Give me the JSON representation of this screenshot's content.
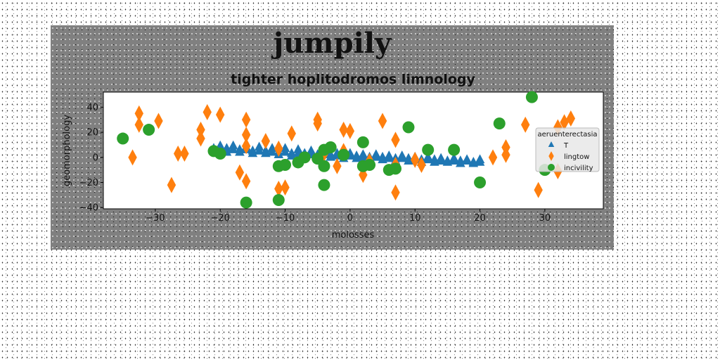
{
  "figure": {
    "suptitle": "jumpily",
    "title": "tighter hoplitodromos limnology"
  },
  "chart_data": {
    "type": "scatter",
    "xlabel": "molosses",
    "ylabel": "geomorphology",
    "xlim": [
      -38,
      39
    ],
    "ylim": [
      -41,
      52
    ],
    "xticks": [
      -30,
      -20,
      -10,
      0,
      10,
      20,
      30
    ],
    "yticks": [
      -40,
      -20,
      0,
      20,
      40
    ],
    "grid": false,
    "legend": {
      "title": "aeruenterectasia",
      "placement": "center-right"
    },
    "series": [
      {
        "name": "T",
        "marker": "triangle",
        "color": "#1f77b4",
        "points": [
          [
            -21,
            7
          ],
          [
            -20,
            7
          ],
          [
            -19,
            7
          ],
          [
            -18,
            6
          ],
          [
            -17,
            6
          ],
          [
            -16,
            6
          ],
          [
            -15,
            5
          ],
          [
            -14,
            5
          ],
          [
            -13,
            5
          ],
          [
            -12,
            4
          ],
          [
            -11,
            4
          ],
          [
            -10,
            4
          ],
          [
            -9,
            3
          ],
          [
            -8,
            3
          ],
          [
            -7,
            3
          ],
          [
            -6,
            2
          ],
          [
            -5,
            2
          ],
          [
            -4,
            2
          ],
          [
            -3,
            2
          ],
          [
            -2,
            1
          ],
          [
            -1,
            1
          ],
          [
            0,
            1
          ],
          [
            1,
            1
          ],
          [
            2,
            0
          ],
          [
            3,
            0
          ],
          [
            4,
            0
          ],
          [
            5,
            0
          ],
          [
            6,
            -1
          ],
          [
            7,
            -1
          ],
          [
            8,
            -1
          ],
          [
            9,
            -1
          ],
          [
            10,
            -2
          ],
          [
            11,
            -2
          ],
          [
            12,
            -2
          ],
          [
            13,
            -2
          ],
          [
            14,
            -3
          ],
          [
            15,
            -3
          ],
          [
            16,
            -3
          ],
          [
            17,
            -3
          ],
          [
            18,
            -3
          ],
          [
            19,
            -4
          ],
          [
            20,
            -4
          ],
          [
            -20,
            9
          ],
          [
            -18,
            9
          ],
          [
            -16,
            8
          ],
          [
            -14,
            8
          ],
          [
            -12,
            7
          ],
          [
            -10,
            7
          ],
          [
            -8,
            6
          ],
          [
            -6,
            5
          ],
          [
            -4,
            4
          ],
          [
            -2,
            3
          ],
          [
            0,
            3
          ],
          [
            2,
            2
          ],
          [
            4,
            2
          ],
          [
            6,
            1
          ],
          [
            8,
            1
          ],
          [
            10,
            0
          ],
          [
            12,
            0
          ],
          [
            14,
            -1
          ],
          [
            16,
            -1
          ],
          [
            18,
            -2
          ],
          [
            20,
            -2
          ],
          [
            -21,
            5
          ],
          [
            -19,
            4
          ],
          [
            -17,
            4
          ],
          [
            -15,
            3
          ],
          [
            -13,
            3
          ],
          [
            -11,
            2
          ],
          [
            -9,
            1
          ],
          [
            -7,
            1
          ],
          [
            -5,
            0
          ],
          [
            -3,
            0
          ],
          [
            -1,
            -1
          ],
          [
            1,
            -1
          ],
          [
            3,
            -2
          ],
          [
            5,
            -2
          ],
          [
            7,
            -3
          ],
          [
            9,
            -3
          ],
          [
            11,
            -4
          ],
          [
            13,
            -4
          ],
          [
            15,
            -4
          ],
          [
            17,
            -5
          ],
          [
            19,
            -5
          ]
        ]
      },
      {
        "name": "lingtow",
        "marker": "diamond",
        "color": "#ff7f0e",
        "points": [
          [
            -32.5,
            35
          ],
          [
            -32.5,
            26
          ],
          [
            -33.5,
            0
          ],
          [
            -29.5,
            29
          ],
          [
            -27.5,
            -22
          ],
          [
            -26.5,
            3
          ],
          [
            -25.5,
            3
          ],
          [
            -23,
            22
          ],
          [
            -23,
            15
          ],
          [
            -22,
            36
          ],
          [
            -20,
            34
          ],
          [
            -17,
            -12
          ],
          [
            -16,
            18
          ],
          [
            -16,
            9
          ],
          [
            -16,
            -19
          ],
          [
            -16,
            30
          ],
          [
            -13,
            13
          ],
          [
            -11,
            7
          ],
          [
            -11,
            -25
          ],
          [
            -10,
            -24
          ],
          [
            -9,
            19
          ],
          [
            -5,
            30
          ],
          [
            -5,
            27
          ],
          [
            -4,
            3
          ],
          [
            -2,
            -7
          ],
          [
            -1,
            22
          ],
          [
            -1,
            5
          ],
          [
            0,
            21
          ],
          [
            2,
            -14
          ],
          [
            3,
            -3
          ],
          [
            5,
            29
          ],
          [
            7,
            14
          ],
          [
            7,
            -28
          ],
          [
            7,
            -6
          ],
          [
            10,
            -2
          ],
          [
            11,
            -6
          ],
          [
            22,
            0
          ],
          [
            24,
            8
          ],
          [
            24,
            2
          ],
          [
            27,
            26
          ],
          [
            29,
            -26
          ],
          [
            32,
            24
          ],
          [
            32,
            -11
          ],
          [
            33,
            28
          ],
          [
            34,
            31
          ]
        ]
      },
      {
        "name": "incivility",
        "marker": "circle",
        "color": "#2ca02c",
        "points": [
          [
            -35,
            15
          ],
          [
            -31,
            22
          ],
          [
            -21,
            5
          ],
          [
            -20,
            3
          ],
          [
            -16,
            -36
          ],
          [
            -11,
            -34
          ],
          [
            -11,
            -7
          ],
          [
            -10,
            -6
          ],
          [
            -8,
            -4
          ],
          [
            -7,
            0
          ],
          [
            -5,
            -1
          ],
          [
            -4,
            6
          ],
          [
            -4,
            -7
          ],
          [
            -4,
            -22
          ],
          [
            -3,
            8
          ],
          [
            -1,
            2
          ],
          [
            2,
            -7
          ],
          [
            2,
            12
          ],
          [
            3,
            -6
          ],
          [
            6,
            -10
          ],
          [
            7,
            -9
          ],
          [
            9,
            24
          ],
          [
            12,
            6
          ],
          [
            16,
            6
          ],
          [
            20,
            -20
          ],
          [
            23,
            27
          ],
          [
            28,
            48
          ],
          [
            30,
            -10
          ]
        ]
      }
    ]
  }
}
